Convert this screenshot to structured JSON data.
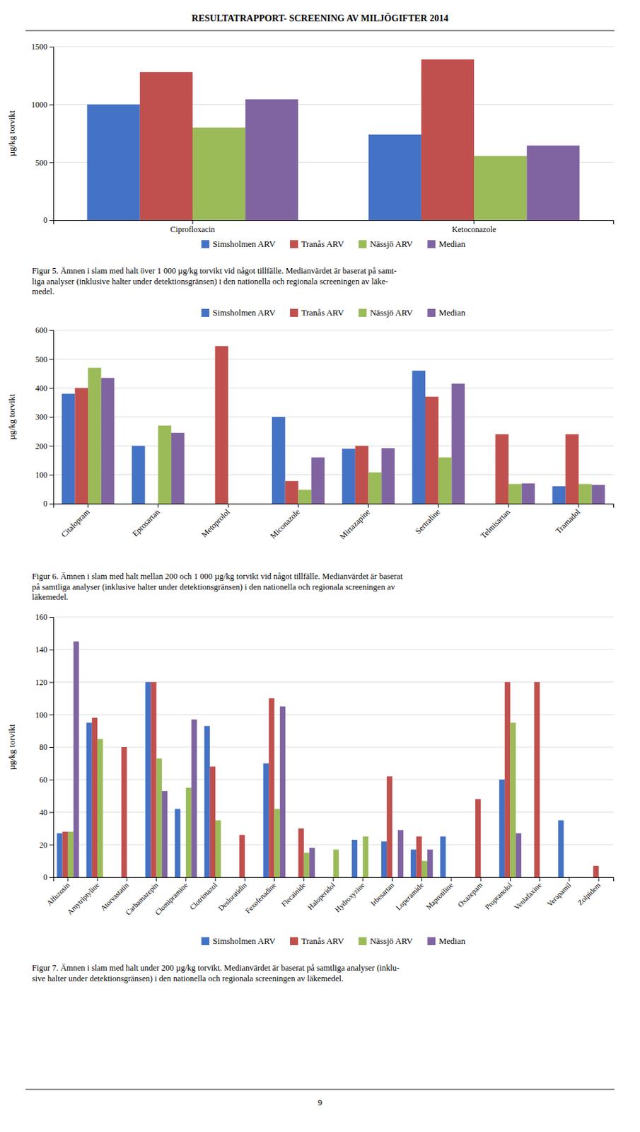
{
  "title": "RESULTATRAPPORT- SCREENING AV MILJÖGIFTER 2014",
  "annotations": [
    "9"
  ],
  "chart_data": [
    {
      "type": "bar",
      "ylabel": "µg/kg torvikt",
      "categories": [
        "Ciprofloxacin",
        "Ketoconazole"
      ],
      "series": [
        {
          "name": "Simsholmen ARV",
          "color": "#4472C4",
          "values": [
            1000,
            740
          ]
        },
        {
          "name": "Tranås ARV",
          "color": "#C0504D",
          "values": [
            1280,
            1390
          ]
        },
        {
          "name": "Nässjö ARV",
          "color": "#9BBB59",
          "values": [
            800,
            555
          ]
        },
        {
          "name": "Median",
          "color": "#8064A2",
          "values": [
            1045,
            645
          ]
        }
      ],
      "ylim": [
        0,
        1500
      ],
      "yticks": [
        0,
        500,
        1000,
        1500
      ],
      "grid": true,
      "legend": "bottom",
      "annotations": [
        "Figur 5. Ämnen i slam med halt över 1 000 µg/kg torvikt vid något tillfälle. Medianvärdet är baserat på samt-\nliga analyser (inklusive halter under detektionsgränsen) i den nationella och regionala screeningen av läke-\nmedel."
      ]
    },
    {
      "type": "bar",
      "ylabel": "µg/kg torvikt",
      "categories": [
        "Citalopram",
        "Eprosartan",
        "Metoprolol",
        "Miconazole",
        "Mirtazapine",
        "Sertraline",
        "Telmisartan",
        "Tramadol"
      ],
      "series": [
        {
          "name": "Simsholmen ARV",
          "color": "#4472C4",
          "values": [
            380,
            200,
            0,
            300,
            190,
            460,
            0,
            60
          ]
        },
        {
          "name": "Tranås ARV",
          "color": "#C0504D",
          "values": [
            400,
            0,
            545,
            78,
            200,
            370,
            240,
            240
          ]
        },
        {
          "name": "Nässjö ARV",
          "color": "#9BBB59",
          "values": [
            470,
            270,
            0,
            48,
            108,
            160,
            68,
            68
          ]
        },
        {
          "name": "Median",
          "color": "#8064A2",
          "values": [
            435,
            245,
            0,
            160,
            192,
            415,
            70,
            65
          ]
        }
      ],
      "ylim": [
        0,
        600
      ],
      "yticks": [
        0,
        100,
        200,
        300,
        400,
        500,
        600
      ],
      "grid": true,
      "legend": "top",
      "annotations": [
        "Figur 6. Ämnen i slam med halt mellan 200 och 1 000 µg/kg torvikt vid något tillfälle. Medianvärdet är baserat\npå samtliga analyser (inklusive halter under detektionsgränsen) i den nationella och regionala screeningen av\nläkemedel."
      ]
    },
    {
      "type": "bar",
      "ylabel": "µg/kg torvikt",
      "categories": [
        "Alfuzosin",
        "Amytriptyline",
        "Atorvastatin",
        "Carbamazepin",
        "Clomipramine",
        "Clotrimazol",
        "Desloratidin",
        "Fexofenadine",
        "Flecainide",
        "Haloperidol",
        "Hydroxyzine",
        "Irbesartan",
        "Loperamide",
        "Maprotiline",
        "Oxazepam",
        "Propranolol",
        "Venlafaxine",
        "Verapamil",
        "Zolpidem"
      ],
      "series": [
        {
          "name": "Simsholmen ARV",
          "color": "#4472C4",
          "values": [
            27,
            95,
            0,
            120,
            42,
            93,
            0,
            70,
            0,
            0,
            23,
            22,
            17,
            25,
            0,
            60,
            0,
            35,
            0
          ]
        },
        {
          "name": "Tranås ARV",
          "color": "#C0504D",
          "values": [
            28,
            98,
            80,
            120,
            0,
            68,
            26,
            110,
            30,
            0,
            0,
            62,
            25,
            0,
            48,
            120,
            120,
            0,
            7
          ]
        },
        {
          "name": "Nässjö ARV",
          "color": "#9BBB59",
          "values": [
            28,
            85,
            0,
            73,
            55,
            35,
            0,
            42,
            15,
            17,
            25,
            0,
            10,
            0,
            0,
            95,
            0,
            0,
            0
          ]
        },
        {
          "name": "Median",
          "color": "#8064A2",
          "values": [
            145,
            0,
            0,
            53,
            97,
            0,
            0,
            105,
            18,
            0,
            0,
            29,
            17,
            0,
            0,
            27,
            0,
            0,
            0
          ]
        }
      ],
      "ylim": [
        0,
        160
      ],
      "yticks": [
        0,
        20,
        40,
        60,
        80,
        100,
        120,
        140,
        160
      ],
      "grid": true,
      "legend": "bottom",
      "annotations": [
        "Figur 7. Ämnen i slam med halt under 200 µg/kg torvikt. Medianvärdet är baserat på samtliga analyser (inklu-\nsive halter under detektionsgränsen) i den nationella och regionala screeningen av läkemedel."
      ]
    }
  ]
}
